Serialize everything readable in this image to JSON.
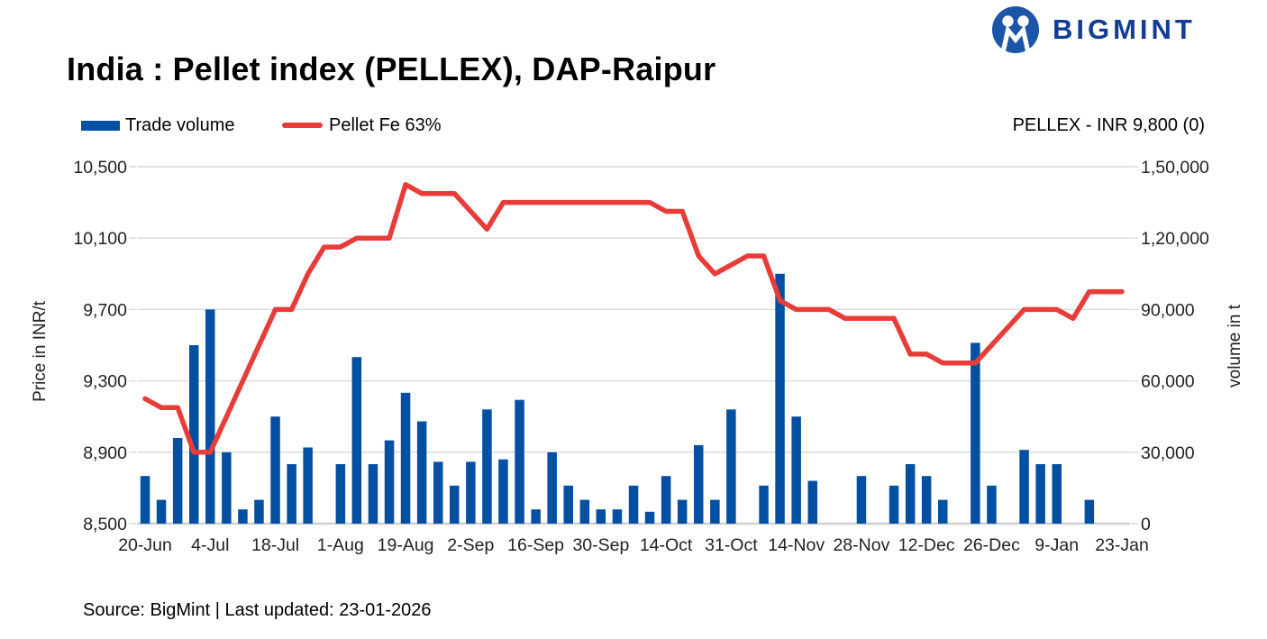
{
  "header": {
    "title": "India : Pellet index (PELLEX), DAP-Raipur",
    "brand": "BIGMINT"
  },
  "legend": {
    "trade_volume": "Trade volume",
    "pellet_fe": "Pellet Fe 63%",
    "current_value": "PELLEX - INR 9,800 (0)"
  },
  "footer": {
    "source": "Source: BigMint | Last updated: 23-01-2026"
  },
  "colors": {
    "bar": "#0350A2",
    "line": "#E83C38",
    "gridline": "#DBDBDB",
    "baseline": "#CFCFCF",
    "axis_text": "#222222",
    "logo_circle": "#1A55A8",
    "logo_text": "#113E94"
  },
  "chart_data": {
    "type": "bar",
    "title": "India : Pellet index (PELLEX), DAP-Raipur",
    "grid": "horizontal",
    "legend_position": "top-left",
    "annotation": "PELLEX - INR 9,800 (0)",
    "x_labels": [
      "20-Jun",
      "4-Jul",
      "18-Jul",
      "1-Aug",
      "19-Aug",
      "2-Sep",
      "16-Sep",
      "30-Sep",
      "14-Oct",
      "31-Oct",
      "14-Nov",
      "28-Nov",
      "12-Dec",
      "26-Dec",
      "9-Jan",
      "23-Jan"
    ],
    "label_every": 4,
    "y_left": {
      "title": "Price in INR/t",
      "min": 8500,
      "max": 10500,
      "ticks": [
        10500,
        10100,
        9700,
        9300,
        8900,
        8500
      ],
      "tick_labels": [
        "10,500",
        "10,100",
        "9,700",
        "9,300",
        "8,900",
        "8,500"
      ]
    },
    "y_right": {
      "title": "volume in t",
      "min": 0,
      "max": 150000,
      "ticks": [
        150000,
        120000,
        90000,
        60000,
        30000,
        0
      ],
      "tick_labels": [
        "1,50,000",
        "1,20,000",
        "90,000",
        "60,000",
        "30,000",
        "0"
      ]
    },
    "series": [
      {
        "name": "Trade volume",
        "kind": "bar",
        "axis": "right",
        "color": "#0350A2",
        "values": [
          20000,
          10000,
          36000,
          75000,
          90000,
          30000,
          6000,
          10000,
          45000,
          25000,
          32000,
          0,
          25000,
          70000,
          25000,
          35000,
          55000,
          43000,
          26000,
          16000,
          26000,
          48000,
          27000,
          52000,
          6000,
          30000,
          16000,
          10000,
          6000,
          6000,
          16000,
          5000,
          20000,
          10000,
          33000,
          10000,
          48000,
          0,
          16000,
          105000,
          45000,
          18000,
          0,
          0,
          20000,
          0,
          16000,
          25000,
          20000,
          10000,
          0,
          76000,
          16000,
          0,
          31000,
          25000,
          25000,
          0,
          10000,
          0,
          0
        ]
      },
      {
        "name": "Pellet Fe 63%",
        "kind": "line",
        "axis": "left",
        "color": "#E83C38",
        "values": [
          9200,
          9150,
          9150,
          8900,
          8900,
          9100,
          9300,
          9500,
          9700,
          9700,
          9900,
          10050,
          10050,
          10100,
          10100,
          10100,
          10400,
          10350,
          10350,
          10350,
          10250,
          10150,
          10300,
          10300,
          10300,
          10300,
          10300,
          10300,
          10300,
          10300,
          10300,
          10300,
          10250,
          10250,
          10000,
          9900,
          9950,
          10000,
          10000,
          9750,
          9700,
          9700,
          9700,
          9650,
          9650,
          9650,
          9650,
          9450,
          9450,
          9400,
          9400,
          9400,
          9500,
          9600,
          9700,
          9700,
          9700,
          9650,
          9800,
          9800,
          9800
        ]
      }
    ]
  }
}
